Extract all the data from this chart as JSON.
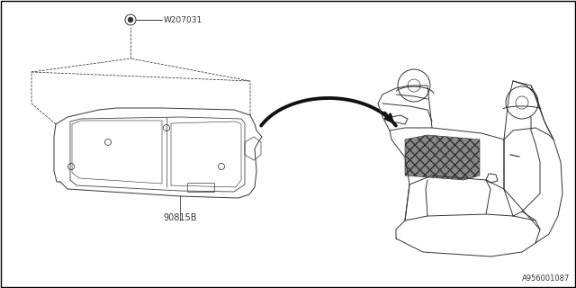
{
  "background_color": "#ffffff",
  "border_color": "#000000",
  "label_90815B": "90815B",
  "label_W207031": "W207031",
  "label_diagram_id": "A956001087",
  "text_color": "#333333",
  "line_color": "#333333",
  "line_width": 0.7,
  "fig_width": 6.4,
  "fig_height": 3.2,
  "dpi": 100
}
